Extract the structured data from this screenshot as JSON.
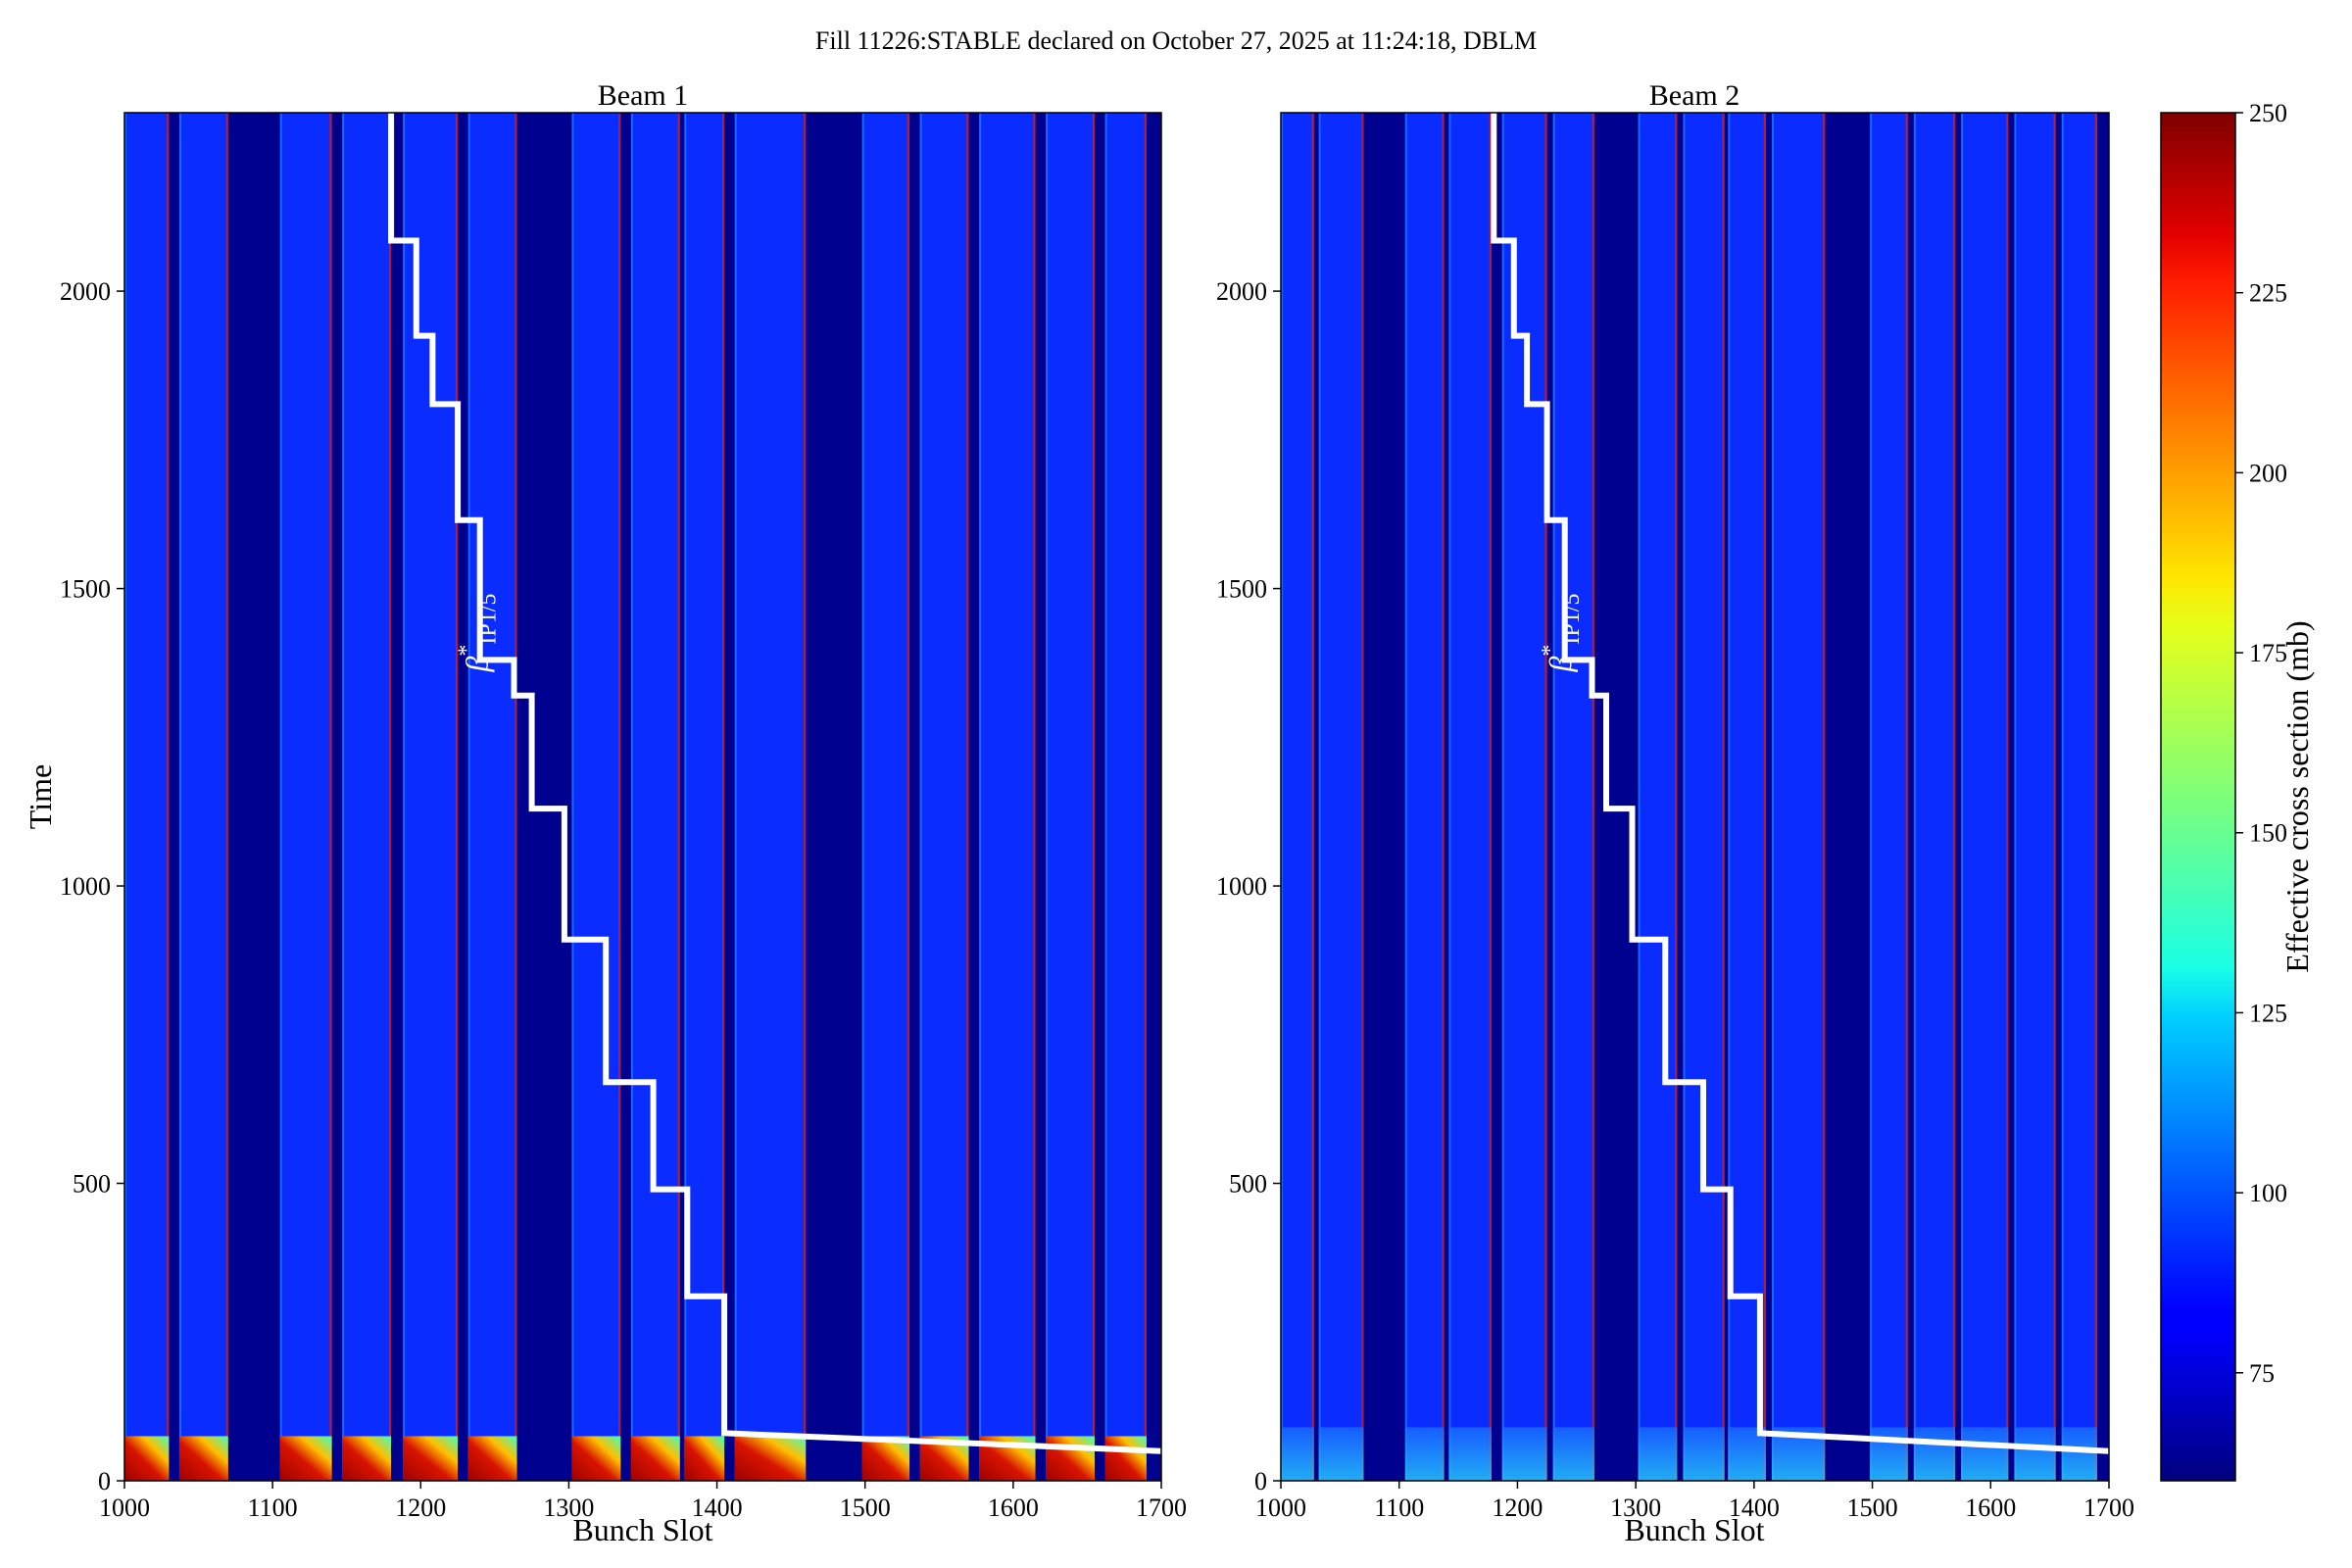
{
  "figure": {
    "suptitle": "Fill 11226:STABLE declared on October 27, 2025 at 11:24:18, DBLM"
  },
  "chart_data": [
    {
      "type": "heatmap",
      "title": "Beam 1",
      "xlabel": "Bunch Slot",
      "ylabel": "Time",
      "xlim": [
        1000,
        1700
      ],
      "ylim": [
        0,
        2300
      ],
      "xticks": [
        1000,
        1100,
        1200,
        1300,
        1400,
        1500,
        1600,
        1700
      ],
      "yticks": [
        0,
        500,
        1000,
        1500,
        2000
      ],
      "filled_trains": [
        [
          1000,
          1030
        ],
        [
          1037,
          1070
        ],
        [
          1105,
          1140
        ],
        [
          1147,
          1180
        ],
        [
          1188,
          1225
        ],
        [
          1232,
          1265
        ],
        [
          1302,
          1335
        ],
        [
          1342,
          1375
        ],
        [
          1378,
          1405
        ],
        [
          1412,
          1460
        ],
        [
          1498,
          1530
        ],
        [
          1537,
          1570
        ],
        [
          1577,
          1615
        ],
        [
          1622,
          1655
        ],
        [
          1662,
          1690
        ]
      ],
      "annotation": {
        "text": "β*IP1/5",
        "base": "β",
        "sup": "*",
        "sub": "IP1/5",
        "x": 1245,
        "y": 1360
      },
      "beta_star_curve": {
        "color": "#ffffff",
        "x": [
          1180,
          1180,
          1197,
          1197,
          1208,
          1208,
          1225,
          1225,
          1240,
          1240,
          1263,
          1263,
          1275,
          1275,
          1297,
          1297,
          1325,
          1325,
          1357,
          1357,
          1380,
          1380,
          1405,
          1405,
          1700
        ],
        "y": [
          2300,
          2085,
          2085,
          1925,
          1925,
          1810,
          1810,
          1615,
          1615,
          1380,
          1380,
          1320,
          1320,
          1130,
          1130,
          910,
          910,
          670,
          670,
          490,
          490,
          310,
          310,
          80,
          50
        ]
      }
    },
    {
      "type": "heatmap",
      "title": "Beam 2",
      "xlabel": "Bunch Slot",
      "ylabel": "",
      "xlim": [
        1000,
        1700
      ],
      "ylim": [
        0,
        2300
      ],
      "xticks": [
        1000,
        1100,
        1200,
        1300,
        1400,
        1500,
        1600,
        1700
      ],
      "yticks": [
        0,
        500,
        1000,
        1500,
        2000
      ],
      "filled_trains": [
        [
          1000,
          1028
        ],
        [
          1032,
          1070
        ],
        [
          1105,
          1138
        ],
        [
          1142,
          1178
        ],
        [
          1187,
          1225
        ],
        [
          1230,
          1265
        ],
        [
          1302,
          1335
        ],
        [
          1340,
          1375
        ],
        [
          1378,
          1410
        ],
        [
          1415,
          1460
        ],
        [
          1498,
          1530
        ],
        [
          1535,
          1570
        ],
        [
          1575,
          1615
        ],
        [
          1620,
          1655
        ],
        [
          1660,
          1690
        ]
      ],
      "annotation": {
        "text": "β*IP1/5",
        "base": "β",
        "sup": "*",
        "sub": "IP1/5",
        "x": 1245,
        "y": 1360
      },
      "beta_star_curve": {
        "color": "#ffffff",
        "x": [
          1180,
          1180,
          1197,
          1197,
          1208,
          1208,
          1225,
          1225,
          1240,
          1240,
          1263,
          1263,
          1275,
          1275,
          1297,
          1297,
          1325,
          1325,
          1357,
          1357,
          1380,
          1380,
          1405,
          1405,
          1700
        ],
        "y": [
          2300,
          2085,
          2085,
          1925,
          1925,
          1810,
          1810,
          1615,
          1615,
          1380,
          1380,
          1320,
          1320,
          1130,
          1130,
          910,
          910,
          670,
          670,
          490,
          490,
          310,
          310,
          80,
          50
        ]
      }
    }
  ],
  "colorbar": {
    "label": "Effective cross section (mb)",
    "range": [
      60,
      250
    ],
    "ticks": [
      75,
      100,
      125,
      150,
      175,
      200,
      225,
      250
    ],
    "colormap": "jet"
  },
  "colors": {
    "background_empty": "#00008f",
    "filled_bunch": "#0a2cff",
    "train_edge": "#c81e1e",
    "curve": "#ffffff"
  }
}
